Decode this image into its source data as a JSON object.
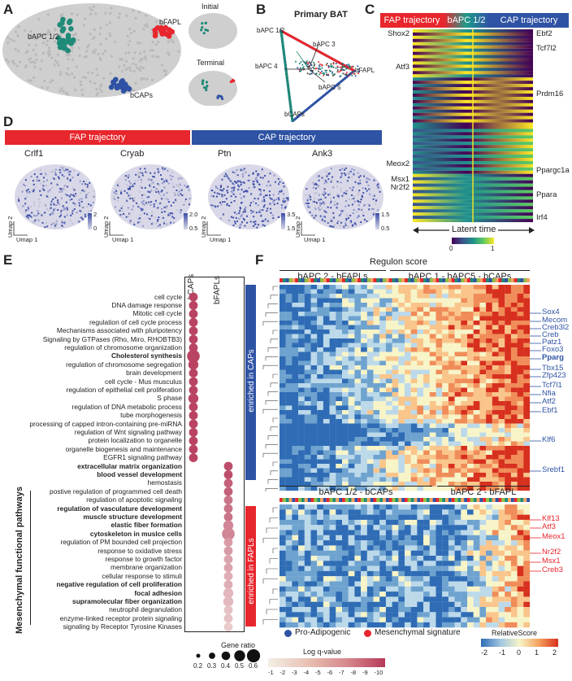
{
  "panels": {
    "a": "A",
    "b": "B",
    "c": "C",
    "d": "D",
    "e": "E",
    "f": "F"
  },
  "panelA": {
    "labels": {
      "bapc12": "bAPC 1/2",
      "bfapl": "bFAPL",
      "bcaps": "bCAPs"
    },
    "initial": "Initial",
    "terminal": "Terminal"
  },
  "panelB": {
    "title": "Primary BAT",
    "labels": {
      "bapc12": "bAPC 1/2",
      "bapc3": "bAPC 3",
      "bapc4": "bAPC 4",
      "bfapl": "bFAPL",
      "bapc5": "bAPC 5",
      "bcaps": "bCAPs"
    }
  },
  "panelC": {
    "bars": [
      "FAP trajectory",
      "bAPC 1/2",
      "CAP trajectory"
    ],
    "left_genes": [
      "Shox2",
      "Atf3",
      "Meox2",
      "Msx1",
      "Nr2f2"
    ],
    "right_genes": [
      "Ebf2",
      "Tcf7l2",
      "Prdm16",
      "Ppargc1a",
      "Ppara",
      "Irf4"
    ],
    "xlabel": "Latent time",
    "cbar_min": "0",
    "cbar_max": "1"
  },
  "panelD": {
    "bars": [
      "FAP trajectory",
      "CAP trajectory"
    ],
    "genes": [
      {
        "name": "Crlf1",
        "cmax": "2",
        "cmin": "0"
      },
      {
        "name": "Cryab",
        "cmax": "2.0",
        "cmin": "0.5"
      },
      {
        "name": "Ptn",
        "cmax": "3.5",
        "cmin": "1.5"
      },
      {
        "name": "Ank3",
        "cmax": "1.5",
        "cmin": "0.5"
      }
    ],
    "umap1": "Umap 1",
    "umap2": "Umap 2"
  },
  "panelE": {
    "columns": [
      "bCAPs",
      "bFAPLs"
    ],
    "side_label": "Mesenchymal functional pathways",
    "terms": [
      {
        "t": "cell cycle",
        "b": false,
        "col": 0,
        "s": 0.3,
        "q": -9.5
      },
      {
        "t": "DNA damage response",
        "b": false,
        "col": 0,
        "s": 0.3,
        "q": -9.5
      },
      {
        "t": "Mitotic cell cycle",
        "b": false,
        "col": 0,
        "s": 0.3,
        "q": -9.5
      },
      {
        "t": "regulation of cell cycle process",
        "b": false,
        "col": 0,
        "s": 0.3,
        "q": -9.5
      },
      {
        "t": "Mechanisms associated with pluripotency",
        "b": false,
        "col": 0,
        "s": 0.3,
        "q": -9.5
      },
      {
        "t": "Signaling by GTPases (Rho, Miro, RHOBTB3)",
        "b": false,
        "col": 0,
        "s": 0.3,
        "q": -9.5
      },
      {
        "t": "regulation of chromosome organization",
        "b": false,
        "col": 0,
        "s": 0.3,
        "q": -9.5
      },
      {
        "t": "Cholesterol synthesis",
        "b": true,
        "col": 0,
        "s": 0.6,
        "q": -9.5
      },
      {
        "t": "regulation of chromosome segregation",
        "b": false,
        "col": 0,
        "s": 0.4,
        "q": -9.5
      },
      {
        "t": "brain development",
        "b": false,
        "col": 0,
        "s": 0.3,
        "q": -9.5
      },
      {
        "t": "cell cycle - Mus musculus",
        "b": false,
        "col": 0,
        "s": 0.3,
        "q": -9.5
      },
      {
        "t": "regulation of epithelial cell proliferation",
        "b": false,
        "col": 0,
        "s": 0.3,
        "q": -9.5
      },
      {
        "t": "S phase",
        "b": false,
        "col": 0,
        "s": 0.4,
        "q": -9.5
      },
      {
        "t": "regulation of DNA metabolic process",
        "b": false,
        "col": 0,
        "s": 0.3,
        "q": -9.5
      },
      {
        "t": "tube morphogenesis",
        "b": false,
        "col": 0,
        "s": 0.3,
        "q": -9.5
      },
      {
        "t": "processing of capped intron-containing pre-miRNA",
        "b": false,
        "col": 0,
        "s": 0.3,
        "q": -9.5
      },
      {
        "t": "regulation of Wnt signaling pathway",
        "b": false,
        "col": 0,
        "s": 0.3,
        "q": -9.5
      },
      {
        "t": "protein localization to organelle",
        "b": false,
        "col": 0,
        "s": 0.3,
        "q": -9.5
      },
      {
        "t": "organelle biogenesis and maintenance",
        "b": false,
        "col": 0,
        "s": 0.3,
        "q": -9.5
      },
      {
        "t": "EGFR1 signaling pathway",
        "b": false,
        "col": 0,
        "s": 0.3,
        "q": -9.5
      },
      {
        "t": "extracellular matrix organization",
        "b": true,
        "col": 1,
        "s": 0.3,
        "q": -9.0
      },
      {
        "t": "blood vessel development",
        "b": true,
        "col": 1,
        "s": 0.3,
        "q": -9.0
      },
      {
        "t": "hemostasis",
        "b": false,
        "col": 1,
        "s": 0.3,
        "q": -8.0
      },
      {
        "t": "postive regulation of programmed cell death",
        "b": false,
        "col": 1,
        "s": 0.3,
        "q": -8.0
      },
      {
        "t": "regulation of apoptotic signaling",
        "b": false,
        "col": 1,
        "s": 0.3,
        "q": -7.0
      },
      {
        "t": "regulation of vasculature development",
        "b": true,
        "col": 1,
        "s": 0.3,
        "q": -7.0
      },
      {
        "t": "muscle structure development",
        "b": true,
        "col": 1,
        "s": 0.3,
        "q": -7.0
      },
      {
        "t": "elastic fiber formation",
        "b": true,
        "col": 1,
        "s": 0.4,
        "q": -6.0
      },
      {
        "t": "cytoskeleton in muslce cells",
        "b": true,
        "col": 1,
        "s": 0.6,
        "q": -6.0
      },
      {
        "t": "regulation of PM bounded cell projection",
        "b": false,
        "col": 1,
        "s": 0.3,
        "q": -5.0
      },
      {
        "t": "response to oxidative stress",
        "b": false,
        "col": 1,
        "s": 0.3,
        "q": -5.0
      },
      {
        "t": "response to growth factor",
        "b": false,
        "col": 1,
        "s": 0.3,
        "q": -4.5
      },
      {
        "t": "membrane organization",
        "b": false,
        "col": 1,
        "s": 0.3,
        "q": -4.5
      },
      {
        "t": "cellular response to stimuli",
        "b": false,
        "col": 1,
        "s": 0.3,
        "q": -4.0
      },
      {
        "t": "negative regulation of cell proliferation",
        "b": true,
        "col": 1,
        "s": 0.3,
        "q": -4.0
      },
      {
        "t": "focal adhesion",
        "b": true,
        "col": 1,
        "s": 0.4,
        "q": -3.5
      },
      {
        "t": "supramolecular fiber organization",
        "b": true,
        "col": 1,
        "s": 0.4,
        "q": -3.5
      },
      {
        "t": "neutrophil degranulation",
        "b": false,
        "col": 1,
        "s": 0.3,
        "q": -3.0
      },
      {
        "t": "enzyme-linked receptor protein signaling",
        "b": false,
        "col": 1,
        "s": 0.3,
        "q": -3.0
      },
      {
        "t": "signaling by Receptor Tyrosine Kinases",
        "b": false,
        "col": 1,
        "s": 0.3,
        "q": -2.5
      }
    ],
    "gene_ratio_title": "Gene ratio",
    "gene_ratio_ticks": [
      "0.2",
      "0.3",
      "0.4",
      "0.5",
      "0.6"
    ],
    "logq_title": "Log q-value",
    "logq_ticks": [
      "-1",
      "-2",
      "-3",
      "-4",
      "-5",
      "-6",
      "-7",
      "-8",
      "-9",
      "-10"
    ]
  },
  "panelF": {
    "title": "Regulon score",
    "top_groups": [
      "bAPC 2 - bFAPLs",
      "bAPC 1 - bAPC5 - bCAPs"
    ],
    "bottom_groups": [
      "bAPC 1/2 - bCAPs",
      "bAPC 2 - bFAPL"
    ],
    "side_top": "enriched in CAPs",
    "side_bottom": "enriched in FAPLs",
    "top_regulons": [
      {
        "t": "Sox4",
        "b": false
      },
      {
        "t": "Mecom",
        "b": false
      },
      {
        "t": "Creb3l2",
        "b": false
      },
      {
        "t": "Creb",
        "b": false
      },
      {
        "t": "Patz1",
        "b": false
      },
      {
        "t": "Foxo3",
        "b": false
      },
      {
        "t": "Pparg",
        "b": true
      },
      {
        "t": "Tbx15",
        "b": false
      },
      {
        "t": "Zfp423",
        "b": false
      },
      {
        "t": "Tcf7l1",
        "b": false
      },
      {
        "t": "Nfia",
        "b": false
      },
      {
        "t": "Atf2",
        "b": false
      },
      {
        "t": "Ebf1",
        "b": false
      },
      {
        "t": "Klf6",
        "b": false
      },
      {
        "t": "Srebf1",
        "b": false
      }
    ],
    "bottom_regulons": [
      "Klf13",
      "Atf3",
      "Meox1",
      "Nr2f2",
      "Msx1",
      "Creb3"
    ],
    "legend": {
      "pro": "Pro-Adipogenic",
      "mes": "Mesenchymal signature"
    },
    "score_title": "RelativeScore",
    "score_ticks": [
      "-2",
      "-1",
      "0",
      "1",
      "2"
    ]
  },
  "colors": {
    "red": "#e8262d",
    "blue": "#2f53a4",
    "teal": "#1f8a78",
    "grey": "#c8c8c8"
  }
}
